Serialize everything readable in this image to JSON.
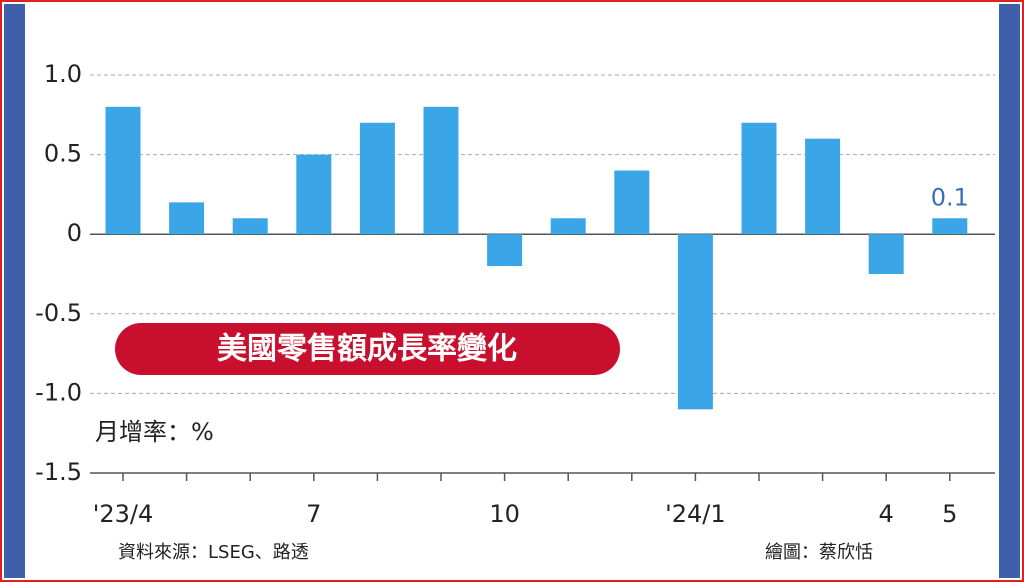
{
  "chart_data": {
    "type": "bar",
    "title": "美國零售額成長率變化",
    "unit_label": "月增率：%",
    "source": "資料來源：LSEG、路透",
    "credit": "繪圖：蔡欣恬",
    "categories": [
      "'23/4",
      null,
      null,
      "7",
      null,
      null,
      "10",
      null,
      null,
      "'24/1",
      null,
      null,
      "4",
      "5"
    ],
    "values": [
      0.8,
      0.2,
      0.1,
      0.5,
      0.7,
      0.8,
      -0.2,
      0.1,
      0.4,
      -1.1,
      0.7,
      0.6,
      -0.25,
      0.1
    ],
    "value_labels": [
      null,
      null,
      null,
      null,
      null,
      null,
      null,
      null,
      null,
      null,
      null,
      null,
      null,
      "0.1"
    ],
    "color": "#3aa6e8",
    "ylim": [
      -1.5,
      1.0
    ],
    "yticks": [
      {
        "value": 1,
        "label": "1.0"
      },
      0.5,
      0,
      -0.5,
      {
        "value": -1,
        "label": "-1.0"
      },
      -1.5
    ],
    "grid": true
  }
}
